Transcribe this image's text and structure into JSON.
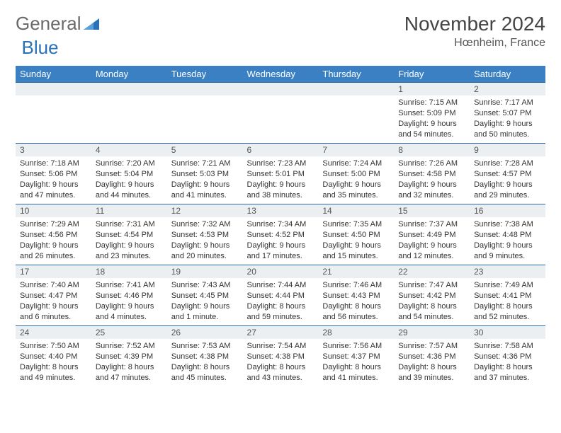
{
  "brand": {
    "part1": "General",
    "part2": "Blue"
  },
  "title": "November 2024",
  "location": "Hœnheim, France",
  "colors": {
    "header_bg": "#3a80c2",
    "header_text": "#ffffff",
    "row_border": "#2a6aa8",
    "daynum_bg": "#eceff1",
    "body_text": "#333333",
    "brand_gray": "#6a6a6a",
    "brand_blue": "#2a72b5"
  },
  "weekdays": [
    "Sunday",
    "Monday",
    "Tuesday",
    "Wednesday",
    "Thursday",
    "Friday",
    "Saturday"
  ],
  "weeks": [
    [
      {
        "n": "",
        "sr": "",
        "ss": "",
        "dl": ""
      },
      {
        "n": "",
        "sr": "",
        "ss": "",
        "dl": ""
      },
      {
        "n": "",
        "sr": "",
        "ss": "",
        "dl": ""
      },
      {
        "n": "",
        "sr": "",
        "ss": "",
        "dl": ""
      },
      {
        "n": "",
        "sr": "",
        "ss": "",
        "dl": ""
      },
      {
        "n": "1",
        "sr": "Sunrise: 7:15 AM",
        "ss": "Sunset: 5:09 PM",
        "dl": "Daylight: 9 hours and 54 minutes."
      },
      {
        "n": "2",
        "sr": "Sunrise: 7:17 AM",
        "ss": "Sunset: 5:07 PM",
        "dl": "Daylight: 9 hours and 50 minutes."
      }
    ],
    [
      {
        "n": "3",
        "sr": "Sunrise: 7:18 AM",
        "ss": "Sunset: 5:06 PM",
        "dl": "Daylight: 9 hours and 47 minutes."
      },
      {
        "n": "4",
        "sr": "Sunrise: 7:20 AM",
        "ss": "Sunset: 5:04 PM",
        "dl": "Daylight: 9 hours and 44 minutes."
      },
      {
        "n": "5",
        "sr": "Sunrise: 7:21 AM",
        "ss": "Sunset: 5:03 PM",
        "dl": "Daylight: 9 hours and 41 minutes."
      },
      {
        "n": "6",
        "sr": "Sunrise: 7:23 AM",
        "ss": "Sunset: 5:01 PM",
        "dl": "Daylight: 9 hours and 38 minutes."
      },
      {
        "n": "7",
        "sr": "Sunrise: 7:24 AM",
        "ss": "Sunset: 5:00 PM",
        "dl": "Daylight: 9 hours and 35 minutes."
      },
      {
        "n": "8",
        "sr": "Sunrise: 7:26 AM",
        "ss": "Sunset: 4:58 PM",
        "dl": "Daylight: 9 hours and 32 minutes."
      },
      {
        "n": "9",
        "sr": "Sunrise: 7:28 AM",
        "ss": "Sunset: 4:57 PM",
        "dl": "Daylight: 9 hours and 29 minutes."
      }
    ],
    [
      {
        "n": "10",
        "sr": "Sunrise: 7:29 AM",
        "ss": "Sunset: 4:56 PM",
        "dl": "Daylight: 9 hours and 26 minutes."
      },
      {
        "n": "11",
        "sr": "Sunrise: 7:31 AM",
        "ss": "Sunset: 4:54 PM",
        "dl": "Daylight: 9 hours and 23 minutes."
      },
      {
        "n": "12",
        "sr": "Sunrise: 7:32 AM",
        "ss": "Sunset: 4:53 PM",
        "dl": "Daylight: 9 hours and 20 minutes."
      },
      {
        "n": "13",
        "sr": "Sunrise: 7:34 AM",
        "ss": "Sunset: 4:52 PM",
        "dl": "Daylight: 9 hours and 17 minutes."
      },
      {
        "n": "14",
        "sr": "Sunrise: 7:35 AM",
        "ss": "Sunset: 4:50 PM",
        "dl": "Daylight: 9 hours and 15 minutes."
      },
      {
        "n": "15",
        "sr": "Sunrise: 7:37 AM",
        "ss": "Sunset: 4:49 PM",
        "dl": "Daylight: 9 hours and 12 minutes."
      },
      {
        "n": "16",
        "sr": "Sunrise: 7:38 AM",
        "ss": "Sunset: 4:48 PM",
        "dl": "Daylight: 9 hours and 9 minutes."
      }
    ],
    [
      {
        "n": "17",
        "sr": "Sunrise: 7:40 AM",
        "ss": "Sunset: 4:47 PM",
        "dl": "Daylight: 9 hours and 6 minutes."
      },
      {
        "n": "18",
        "sr": "Sunrise: 7:41 AM",
        "ss": "Sunset: 4:46 PM",
        "dl": "Daylight: 9 hours and 4 minutes."
      },
      {
        "n": "19",
        "sr": "Sunrise: 7:43 AM",
        "ss": "Sunset: 4:45 PM",
        "dl": "Daylight: 9 hours and 1 minute."
      },
      {
        "n": "20",
        "sr": "Sunrise: 7:44 AM",
        "ss": "Sunset: 4:44 PM",
        "dl": "Daylight: 8 hours and 59 minutes."
      },
      {
        "n": "21",
        "sr": "Sunrise: 7:46 AM",
        "ss": "Sunset: 4:43 PM",
        "dl": "Daylight: 8 hours and 56 minutes."
      },
      {
        "n": "22",
        "sr": "Sunrise: 7:47 AM",
        "ss": "Sunset: 4:42 PM",
        "dl": "Daylight: 8 hours and 54 minutes."
      },
      {
        "n": "23",
        "sr": "Sunrise: 7:49 AM",
        "ss": "Sunset: 4:41 PM",
        "dl": "Daylight: 8 hours and 52 minutes."
      }
    ],
    [
      {
        "n": "24",
        "sr": "Sunrise: 7:50 AM",
        "ss": "Sunset: 4:40 PM",
        "dl": "Daylight: 8 hours and 49 minutes."
      },
      {
        "n": "25",
        "sr": "Sunrise: 7:52 AM",
        "ss": "Sunset: 4:39 PM",
        "dl": "Daylight: 8 hours and 47 minutes."
      },
      {
        "n": "26",
        "sr": "Sunrise: 7:53 AM",
        "ss": "Sunset: 4:38 PM",
        "dl": "Daylight: 8 hours and 45 minutes."
      },
      {
        "n": "27",
        "sr": "Sunrise: 7:54 AM",
        "ss": "Sunset: 4:38 PM",
        "dl": "Daylight: 8 hours and 43 minutes."
      },
      {
        "n": "28",
        "sr": "Sunrise: 7:56 AM",
        "ss": "Sunset: 4:37 PM",
        "dl": "Daylight: 8 hours and 41 minutes."
      },
      {
        "n": "29",
        "sr": "Sunrise: 7:57 AM",
        "ss": "Sunset: 4:36 PM",
        "dl": "Daylight: 8 hours and 39 minutes."
      },
      {
        "n": "30",
        "sr": "Sunrise: 7:58 AM",
        "ss": "Sunset: 4:36 PM",
        "dl": "Daylight: 8 hours and 37 minutes."
      }
    ]
  ]
}
